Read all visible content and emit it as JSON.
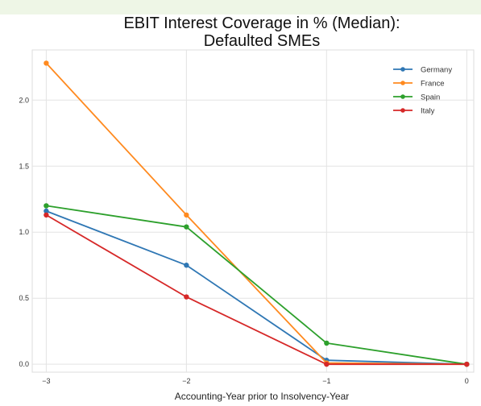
{
  "chart_data": {
    "type": "line",
    "title": "EBIT Interest Coverage in % (Median):\nDefaulted SMEs",
    "xlabel": "Accounting-Year prior to Insolvency-Year",
    "ylabel": "",
    "x": [
      -3,
      -2,
      -1,
      0
    ],
    "xlim": [
      -3.1,
      0.05
    ],
    "ylim": [
      -0.06,
      2.38
    ],
    "xticks": [
      -3,
      -2,
      -1,
      0
    ],
    "yticks": [
      0.0,
      0.5,
      1.0,
      1.5,
      2.0
    ],
    "xtick_labels": [
      "−3",
      "−2",
      "−1",
      "0"
    ],
    "ytick_labels": [
      "0.0",
      "0.5",
      "1.0",
      "1.5",
      "2.0"
    ],
    "grid": true,
    "legend_position": "top-right",
    "series": [
      {
        "name": "Germany",
        "color": "#2f77b4",
        "values": [
          1.16,
          0.75,
          0.03,
          0.0
        ]
      },
      {
        "name": "France",
        "color": "#ff8a1f",
        "values": [
          2.28,
          1.13,
          0.01,
          0.0
        ]
      },
      {
        "name": "Spain",
        "color": "#2da02c",
        "values": [
          1.2,
          1.04,
          0.16,
          0.0
        ]
      },
      {
        "name": "Italy",
        "color": "#d62828",
        "values": [
          1.13,
          0.51,
          0.0,
          0.0
        ]
      }
    ]
  }
}
